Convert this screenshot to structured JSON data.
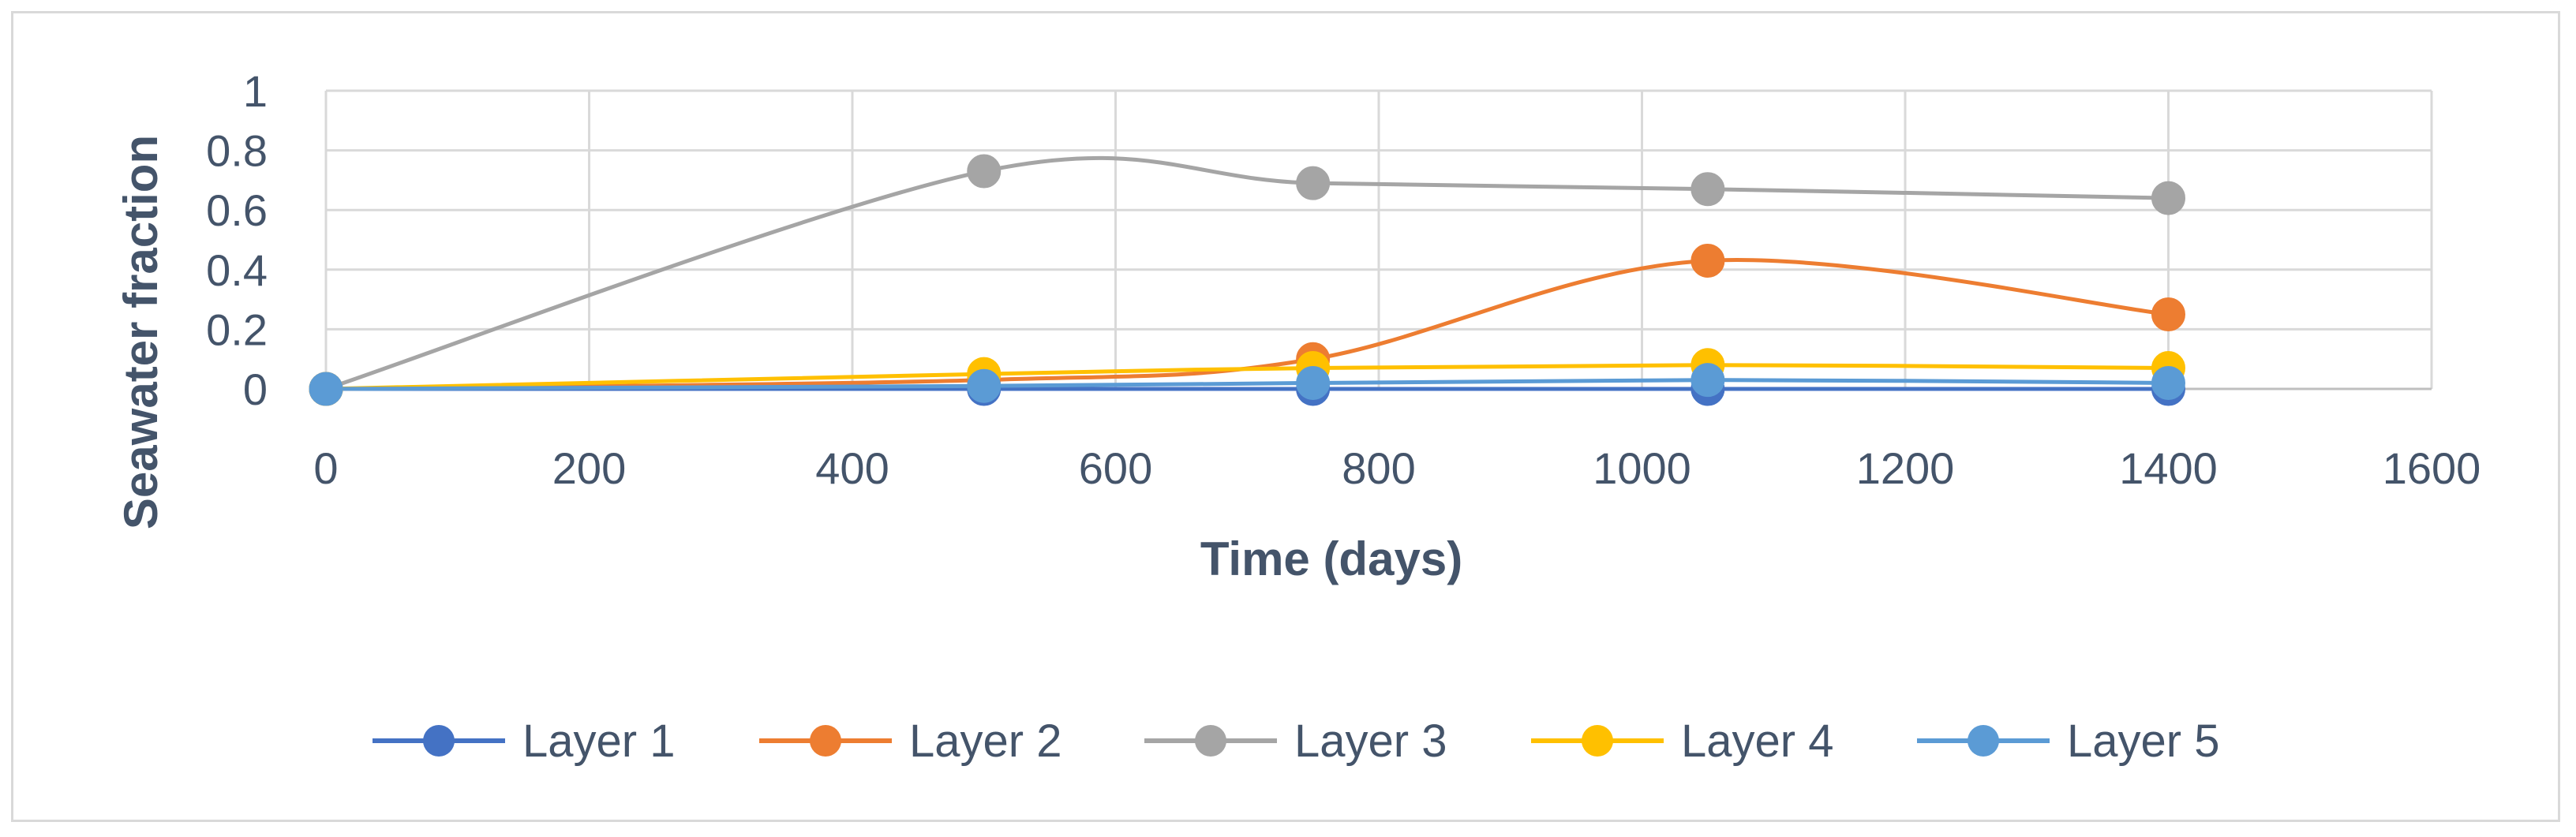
{
  "chart_data": {
    "type": "line",
    "smooth": true,
    "xlabel": "Time (days)",
    "ylabel": "Seawater fraction",
    "xlim": [
      0,
      1600
    ],
    "ylim": [
      0,
      1
    ],
    "x_ticks": [
      0,
      200,
      400,
      600,
      800,
      1000,
      1200,
      1400,
      1600
    ],
    "y_ticks": [
      0,
      0.2,
      0.4,
      0.6,
      0.8,
      1
    ],
    "y_tick_labels": [
      "0",
      "0.2",
      "0.4",
      "0.6",
      "0.8",
      "1"
    ],
    "grid": true,
    "legend_position": "bottom",
    "series": [
      {
        "name": "Layer 1",
        "color": "#4472c4",
        "x": [
          0,
          500,
          750,
          1050,
          1400
        ],
        "y": [
          0,
          0,
          0,
          0,
          0
        ]
      },
      {
        "name": "Layer 2",
        "color": "#ed7d31",
        "x": [
          0,
          500,
          750,
          1050,
          1400
        ],
        "y": [
          0,
          0.03,
          0.1,
          0.43,
          0.25
        ]
      },
      {
        "name": "Layer 3",
        "color": "#a5a5a5",
        "x": [
          0,
          500,
          750,
          1050,
          1400
        ],
        "y": [
          0,
          0.73,
          0.69,
          0.67,
          0.64
        ]
      },
      {
        "name": "Layer 4",
        "color": "#ffc000",
        "x": [
          0,
          500,
          750,
          1050,
          1400
        ],
        "y": [
          0,
          0.05,
          0.07,
          0.08,
          0.07
        ]
      },
      {
        "name": "Layer 5",
        "color": "#5b9bd5",
        "x": [
          0,
          500,
          750,
          1050,
          1400
        ],
        "y": [
          0,
          0.01,
          0.02,
          0.03,
          0.02
        ]
      }
    ]
  }
}
